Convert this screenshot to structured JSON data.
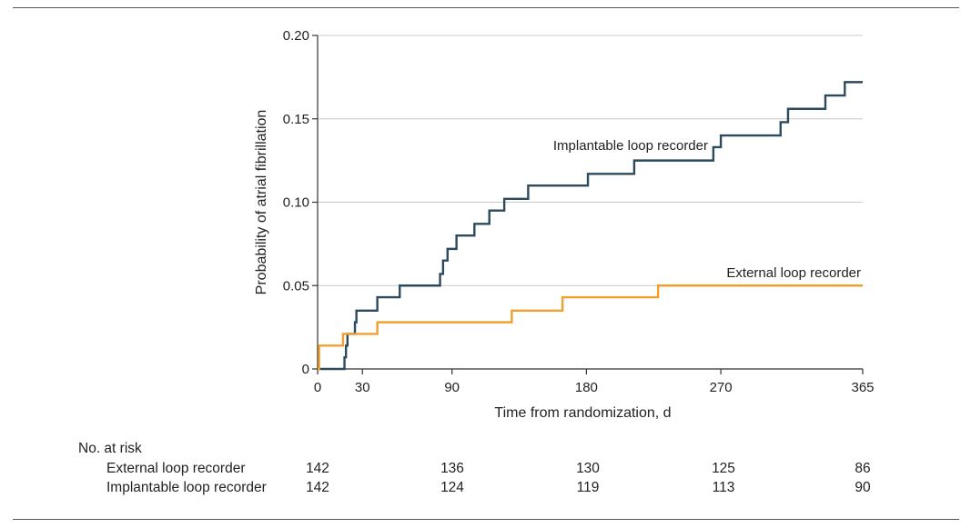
{
  "chart_data": {
    "type": "line",
    "title": "",
    "xlabel": "Time from randomization, d",
    "ylabel": "Probability of atrial fibrillation",
    "xlim": [
      0,
      365
    ],
    "ylim": [
      0,
      0.2
    ],
    "x_ticks": [
      0,
      30,
      90,
      180,
      270,
      365
    ],
    "x_tick_labels": [
      "0",
      "30",
      "90",
      "180",
      "270",
      "365"
    ],
    "y_ticks": [
      0,
      0.05,
      0.1,
      0.15,
      0.2
    ],
    "y_tick_labels": [
      "0",
      "0.05",
      "0.10",
      "0.15",
      "0.20"
    ],
    "grid": "horizontal",
    "series": [
      {
        "name": "Implantable loop recorder",
        "color": "#2d4a5c",
        "step": true,
        "points": [
          [
            0,
            0
          ],
          [
            17,
            0
          ],
          [
            18,
            0.007
          ],
          [
            19,
            0.014
          ],
          [
            20,
            0.021
          ],
          [
            25,
            0.028
          ],
          [
            26,
            0.035
          ],
          [
            40,
            0.043
          ],
          [
            55,
            0.05
          ],
          [
            82,
            0.057
          ],
          [
            84,
            0.065
          ],
          [
            87,
            0.072
          ],
          [
            93,
            0.08
          ],
          [
            105,
            0.087
          ],
          [
            115,
            0.095
          ],
          [
            125,
            0.102
          ],
          [
            141,
            0.11
          ],
          [
            181,
            0.117
          ],
          [
            212,
            0.125
          ],
          [
            265,
            0.133
          ],
          [
            270,
            0.14
          ],
          [
            310,
            0.148
          ],
          [
            315,
            0.156
          ],
          [
            340,
            0.164
          ],
          [
            353,
            0.172
          ],
          [
            365,
            0.172
          ]
        ]
      },
      {
        "name": "External loop recorder",
        "color": "#f0a030",
        "step": true,
        "points": [
          [
            0,
            0
          ],
          [
            1,
            0.014
          ],
          [
            17,
            0.021
          ],
          [
            40,
            0.028
          ],
          [
            130,
            0.035
          ],
          [
            164,
            0.043
          ],
          [
            228,
            0.05
          ],
          [
            365,
            0.05
          ]
        ]
      }
    ],
    "annotations": [
      {
        "text": "Implantable loop recorder",
        "series": 0
      },
      {
        "text": "External loop recorder",
        "series": 1
      }
    ]
  },
  "risk_table": {
    "heading": "No. at risk",
    "times": [
      0,
      90,
      180,
      270,
      365
    ],
    "rows": [
      {
        "label": "External loop recorder",
        "values": [
          "142",
          "136",
          "130",
          "125",
          "86"
        ]
      },
      {
        "label": "Implantable loop recorder",
        "values": [
          "142",
          "124",
          "119",
          "113",
          "90"
        ]
      }
    ]
  }
}
